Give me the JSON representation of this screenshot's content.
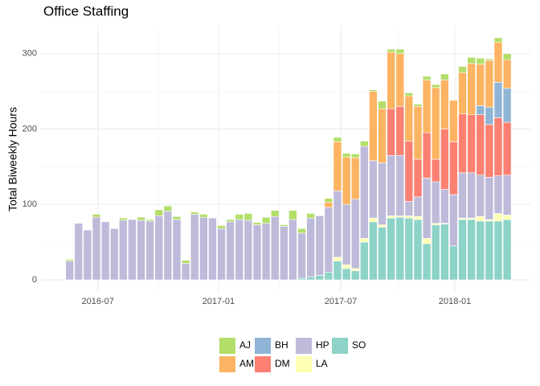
{
  "chart_data": {
    "type": "bar",
    "stacked": true,
    "title": "Office Staffing",
    "y_label": "Total Biweekly Hours",
    "categories": [
      null,
      null,
      null,
      null,
      null,
      null,
      null,
      null,
      null,
      null,
      null,
      null,
      null,
      null,
      null,
      null,
      null,
      null,
      null,
      null,
      null,
      null,
      null,
      null,
      null,
      null,
      null,
      null,
      null,
      null,
      null,
      null,
      null,
      null,
      null,
      null,
      null,
      null,
      null,
      null,
      null,
      null,
      null,
      null,
      null,
      null,
      null,
      null,
      null,
      null
    ],
    "series": [
      {
        "name": "AJ",
        "color": "#b3de69",
        "values": [
          2,
          0,
          0,
          4,
          0,
          0,
          3,
          0,
          4,
          2,
          8,
          7,
          4,
          4,
          3,
          4,
          0,
          4,
          3,
          7,
          9,
          3,
          8,
          8,
          2,
          12,
          6,
          6,
          0,
          5,
          6,
          5,
          5,
          7,
          2,
          10,
          4,
          6,
          4,
          3,
          5,
          4,
          8,
          0,
          8,
          8,
          8,
          2,
          6,
          8
        ]
      },
      {
        "name": "AM",
        "color": "#fdb462",
        "values": [
          0,
          0,
          0,
          0,
          0,
          0,
          0,
          0,
          0,
          0,
          0,
          0,
          0,
          0,
          0,
          0,
          0,
          0,
          0,
          0,
          0,
          0,
          0,
          0,
          0,
          0,
          0,
          0,
          0,
          7,
          65,
          63,
          55,
          0,
          92,
          72,
          75,
          70,
          60,
          70,
          70,
          95,
          65,
          55,
          55,
          68,
          55,
          62,
          53,
          38
        ]
      },
      {
        "name": "BH",
        "color": "#8fb4d6",
        "values": [
          0,
          0,
          0,
          0,
          0,
          0,
          0,
          0,
          0,
          0,
          0,
          0,
          0,
          0,
          0,
          0,
          0,
          0,
          0,
          0,
          0,
          0,
          0,
          0,
          0,
          0,
          0,
          0,
          0,
          0,
          0,
          0,
          0,
          0,
          0,
          0,
          0,
          0,
          0,
          0,
          0,
          0,
          0,
          0,
          0,
          0,
          12,
          23,
          47,
          45
        ]
      },
      {
        "name": "DM",
        "color": "#fb8072",
        "values": [
          0,
          0,
          0,
          0,
          0,
          0,
          0,
          0,
          0,
          0,
          0,
          0,
          0,
          0,
          0,
          0,
          0,
          0,
          0,
          0,
          0,
          0,
          0,
          0,
          0,
          0,
          0,
          0,
          0,
          0,
          0,
          0,
          0,
          0,
          0,
          0,
          62,
          65,
          80,
          50,
          60,
          30,
          80,
          70,
          78,
          77,
          80,
          70,
          77,
          70
        ]
      },
      {
        "name": "HP",
        "color": "#bebada",
        "values": [
          25,
          75,
          66,
          83,
          77,
          68,
          79,
          80,
          79,
          78,
          85,
          91,
          80,
          22,
          87,
          83,
          82,
          68,
          77,
          80,
          79,
          73,
          75,
          84,
          71,
          80,
          60,
          78,
          79,
          86,
          88,
          80,
          92,
          122,
          76,
          82,
          80,
          80,
          19,
          26,
          80,
          55,
          45,
          68,
          60,
          60,
          55,
          56,
          50,
          53
        ]
      },
      {
        "name": "LA",
        "color": "#ffffb3",
        "values": [
          0,
          0,
          0,
          0,
          0,
          0,
          0,
          0,
          0,
          0,
          0,
          0,
          0,
          0,
          0,
          0,
          0,
          0,
          0,
          0,
          0,
          0,
          0,
          0,
          0,
          0,
          0,
          0,
          0,
          0,
          5,
          5,
          3,
          5,
          5,
          3,
          3,
          2,
          3,
          4,
          7,
          2,
          1,
          0,
          2,
          2,
          6,
          2,
          10,
          6
        ]
      },
      {
        "name": "SO",
        "color": "#8dd3c7",
        "values": [
          0,
          0,
          0,
          0,
          0,
          0,
          0,
          0,
          0,
          0,
          0,
          0,
          0,
          0,
          0,
          0,
          0,
          0,
          0,
          0,
          0,
          0,
          0,
          0,
          0,
          0,
          2,
          4,
          6,
          10,
          25,
          15,
          12,
          50,
          77,
          70,
          82,
          83,
          82,
          80,
          48,
          73,
          74,
          45,
          80,
          80,
          78,
          78,
          78,
          80
        ]
      }
    ],
    "xlim": [
      -3.3,
      51.6
    ],
    "xticks": [
      {
        "value": 3.15,
        "label": "2016-07"
      },
      {
        "value": 16.67,
        "label": "2017-01"
      },
      {
        "value": 30.36,
        "label": "2017-07"
      },
      {
        "value": 43.15,
        "label": "2018-01"
      }
    ],
    "xminor": [
      9.9,
      23.5,
      36.8
    ],
    "ylim": [
      -16,
      337
    ],
    "yticks": [
      0,
      100,
      200,
      300
    ],
    "yminor": [
      50,
      150,
      250
    ],
    "grid": true,
    "legend": "bottom"
  }
}
